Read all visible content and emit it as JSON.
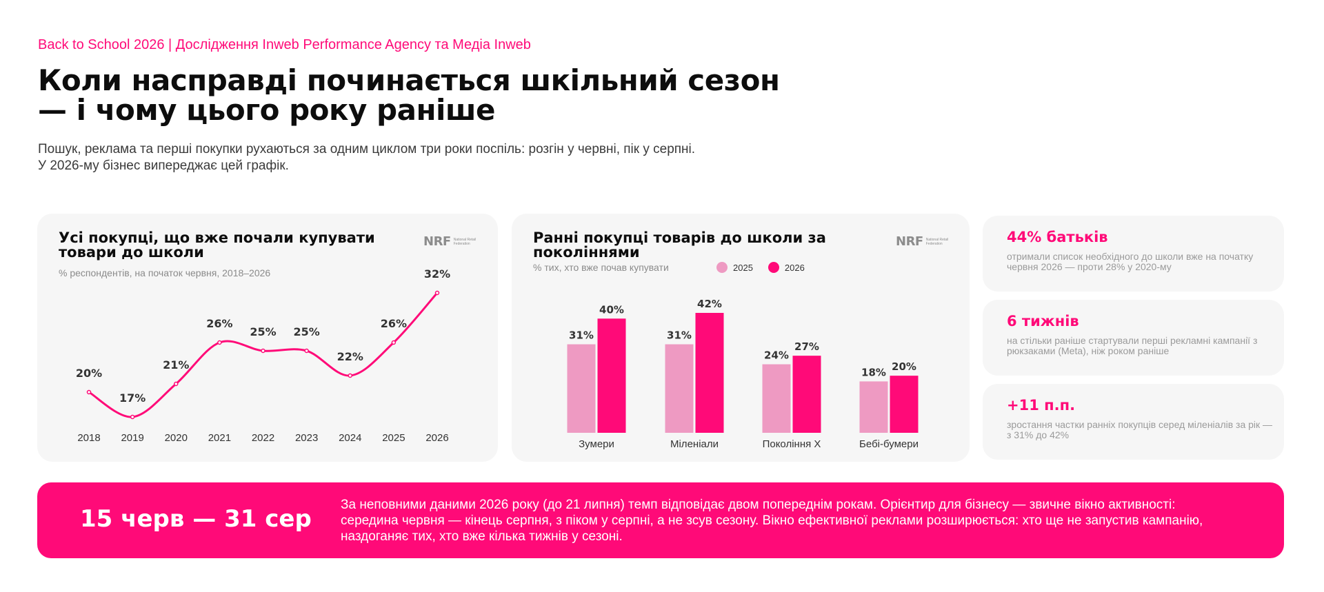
{
  "header": {
    "eyebrow": "Back to School 2026 | Дослідження Inweb Performance Agency та Медіа Inweb",
    "title": "Коли насправді починається шкільний сезон — і чому цього року раніше",
    "subtitle": "Пошук, реклама та перші покупки рухаються за одним циклом три роки поспіль: розгін у червні, пік у серпні. У 2026-му бізнес випереджає цей графік."
  },
  "source_logo": {
    "mark": "NRF",
    "text": "National Retail Federation"
  },
  "colors": {
    "accent": "#ff0a78",
    "bar_2025": "#ee9ac2",
    "bar_2026": "#ff0a78",
    "card_bg": "#f6f6f6"
  },
  "chart_data": [
    {
      "type": "line",
      "title": "Усі покупці, що вже почали купувати товари до школи",
      "subtitle": "% респондентів, на початок червня, 2018–2026",
      "x": [
        "2018",
        "2019",
        "2020",
        "2021",
        "2022",
        "2023",
        "2024",
        "2025",
        "2026"
      ],
      "values": [
        20,
        17,
        21,
        26,
        25,
        25,
        22,
        26,
        32
      ],
      "labels": [
        "20%",
        "17%",
        "21%",
        "26%",
        "25%",
        "25%",
        "22%",
        "26%",
        "32%"
      ],
      "ylim": [
        16,
        33
      ],
      "grid": false
    },
    {
      "type": "bar",
      "title": "Ранні покупці товарів до школи за поколіннями",
      "subtitle": "% тих, хто вже почав купувати",
      "categories": [
        "Зумери",
        "Міленіали",
        "Покоління X",
        "Бебі-бумери"
      ],
      "series": [
        {
          "name": "2025",
          "values": [
            31,
            31,
            24,
            18
          ],
          "labels": [
            "31%",
            "31%",
            "24%",
            "18%"
          ]
        },
        {
          "name": "2026",
          "values": [
            40,
            42,
            27,
            20
          ],
          "labels": [
            "40%",
            "42%",
            "27%",
            "20%"
          ]
        }
      ],
      "ylim": [
        0,
        42
      ],
      "legend": "top",
      "grid": false
    }
  ],
  "stats": [
    {
      "value": "44% батьків",
      "text": "отримали список необхідного до школи вже на початку червня 2026 — проти 28% у 2020-му"
    },
    {
      "value": "6 тижнів",
      "text": "на стільки раніше стартували перші рекламні кампанії з рюкзаками (Meta), ніж роком раніше"
    },
    {
      "value": "+11 п.п.",
      "text": "зростання частки ранніх покупців серед міленіалів за рік — з 31% до 42%"
    }
  ],
  "banner": {
    "range": "15 черв — 31 сер",
    "text": "За неповними даними 2026 року (до 21 липня) темп відповідає двом попереднім рокам. Орієнтир для бізнесу — звичне вікно активності: середина червня — кінець серпня, з піком у серпні, а не зсув сезону. Вікно ефективної реклами розширюється: хто ще не запустив кампанію, наздоганяє тих, хто вже кілька тижнів у сезоні."
  }
}
